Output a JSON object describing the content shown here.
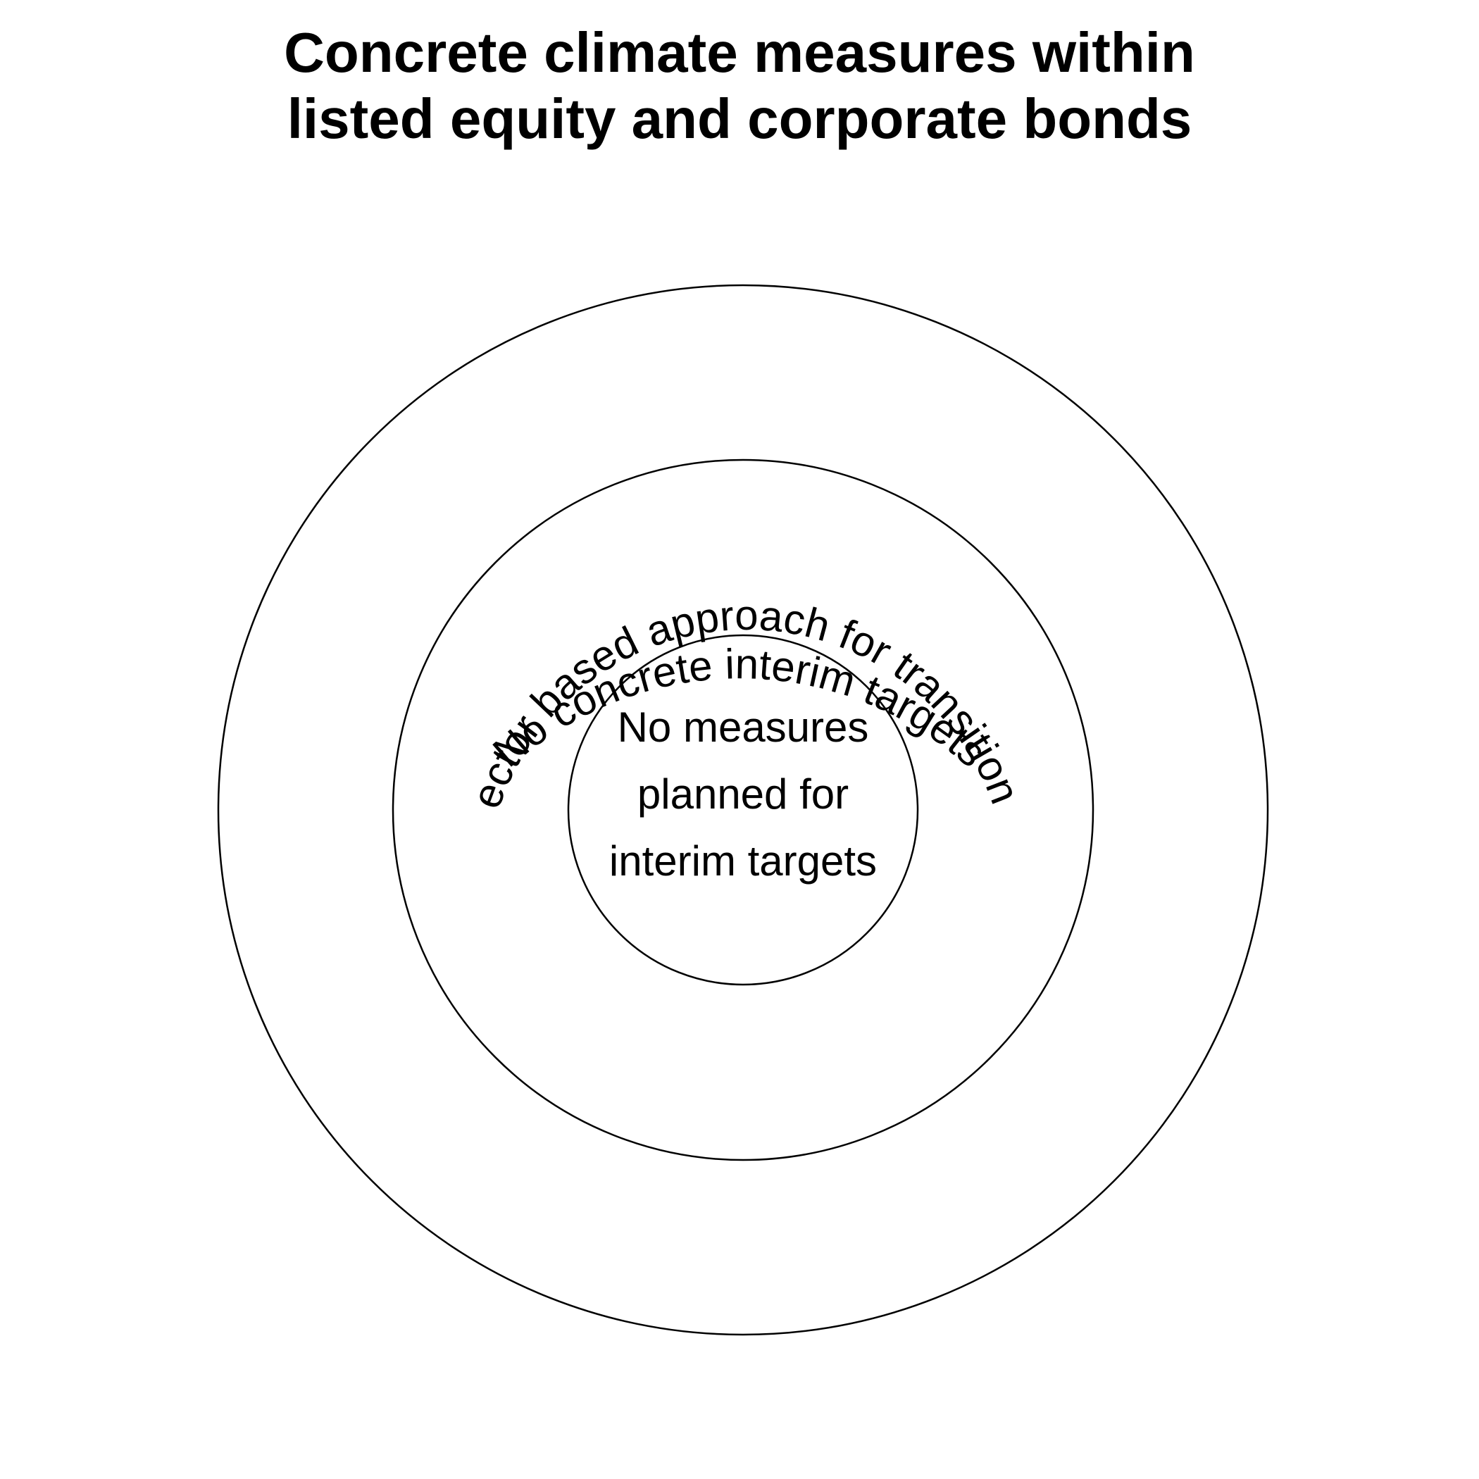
{
  "title": {
    "line1": "Concrete climate measures within",
    "line2": "listed equity and corporate bonds"
  },
  "rings": {
    "outer": {
      "label": "No  concrete interim targets"
    },
    "middle": {
      "label": "No  sector based approach for transition plan"
    },
    "inner": {
      "line1": "No measures",
      "line2": "planned for",
      "line3": "interim targets"
    }
  },
  "colors": {
    "stroke": "#000000",
    "text": "#000000",
    "background": "#ffffff"
  }
}
